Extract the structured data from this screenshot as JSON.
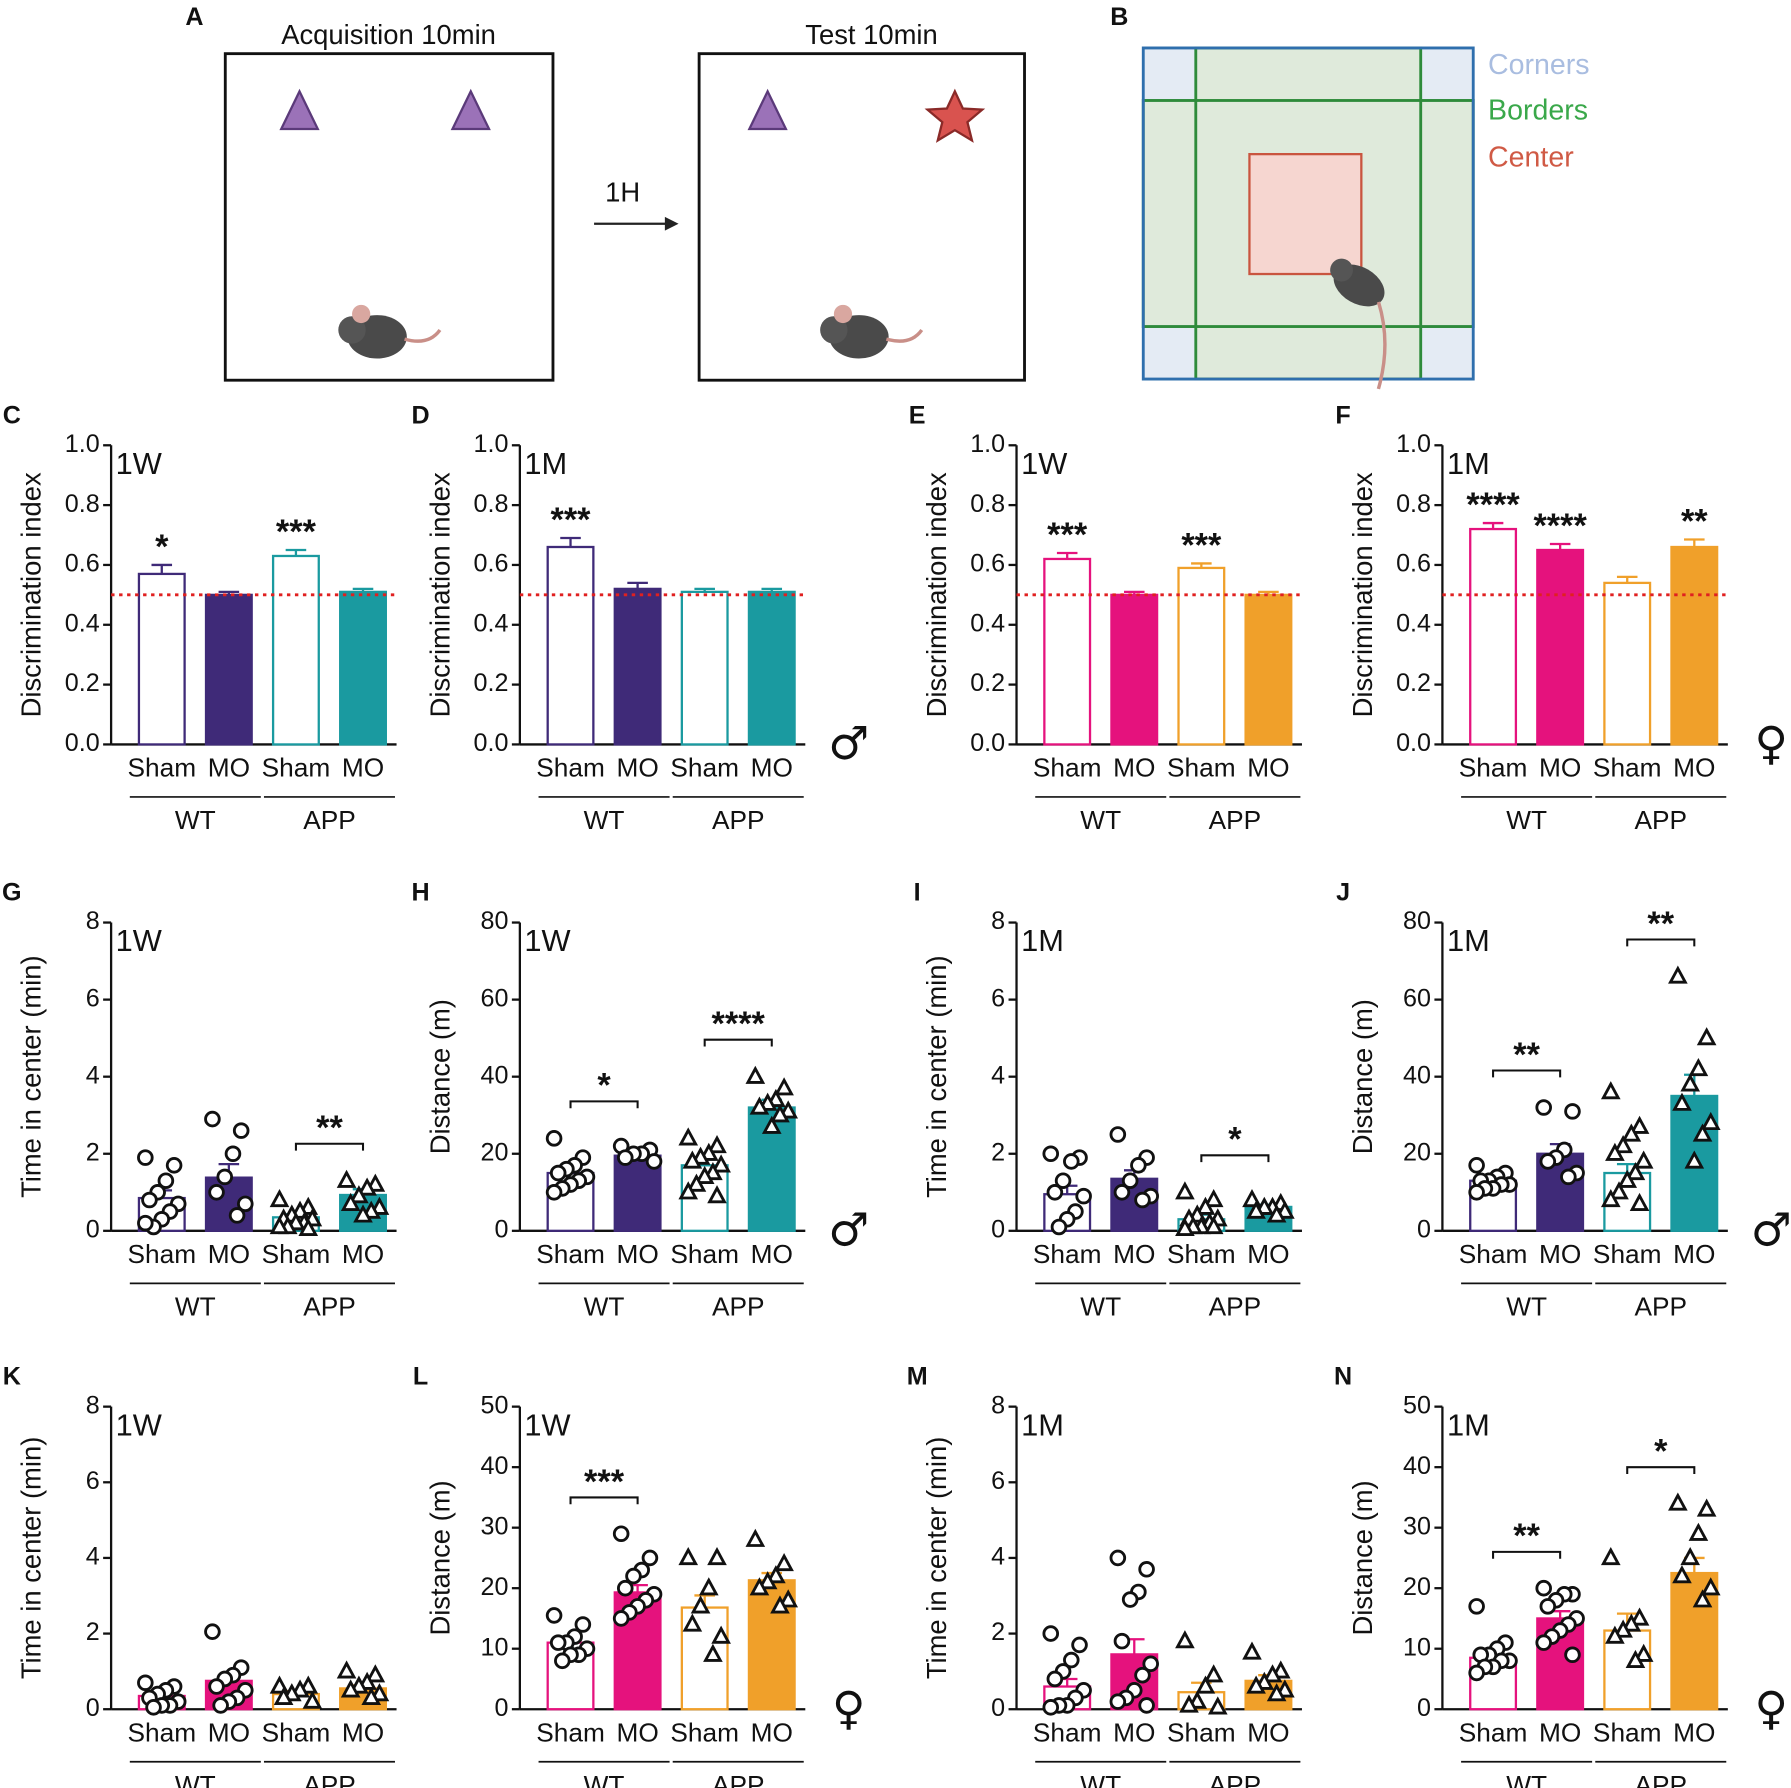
{
  "diagram": {
    "A": {
      "letter": "A",
      "boxes": [
        "Acquisition 10min",
        "Test 10min"
      ],
      "arrow": "1H"
    },
    "B": {
      "letter": "B",
      "zones": [
        "Corners",
        "Borders",
        "Center"
      ]
    }
  },
  "chart_data": [
    {
      "type": "bar",
      "panel": "C",
      "label": "1W",
      "ylabel": "Discrimination index",
      "categories": [
        "Sham",
        "MO",
        "Sham",
        "MO"
      ],
      "groups": [
        "WT",
        "APP"
      ],
      "values": [
        0.57,
        0.5,
        0.63,
        0.51
      ],
      "errors": [
        0.03,
        0.01,
        0.02,
        0.01
      ],
      "colors": [
        "#3f2a78",
        "#3f2a78",
        "#1a9aa0",
        "#1a9aa0"
      ],
      "filled": [
        false,
        true,
        false,
        true
      ],
      "ylim": [
        0,
        1
      ],
      "yticks": [
        {
          "value": 0,
          "label": "0.0"
        },
        0.2,
        0.4,
        0.6,
        0.8,
        {
          "value": 1,
          "label": "1.0"
        }
      ],
      "reference_line": 0.5,
      "significance": [
        {
          "bar": 0,
          "label": "*"
        },
        {
          "bar": 2,
          "label": "***"
        }
      ]
    },
    {
      "type": "bar",
      "panel": "D",
      "label": "1M",
      "ylabel": "Discrimination index",
      "categories": [
        "Sham",
        "MO",
        "Sham",
        "MO"
      ],
      "groups": [
        "WT",
        "APP"
      ],
      "values": [
        0.66,
        0.52,
        0.51,
        0.51
      ],
      "errors": [
        0.03,
        0.02,
        0.01,
        0.01
      ],
      "colors": [
        "#3f2a78",
        "#3f2a78",
        "#1a9aa0",
        "#1a9aa0"
      ],
      "filled": [
        false,
        true,
        false,
        true
      ],
      "ylim": [
        0,
        1
      ],
      "yticks": [
        {
          "value": 0,
          "label": "0.0"
        },
        0.2,
        0.4,
        0.6,
        0.8,
        {
          "value": 1,
          "label": "1.0"
        }
      ],
      "reference_line": 0.5,
      "significance": [
        {
          "bar": 0,
          "label": "***"
        }
      ],
      "sex": "♂"
    },
    {
      "type": "bar",
      "panel": "E",
      "label": "1W",
      "ylabel": "Discrimination index",
      "categories": [
        "Sham",
        "MO",
        "Sham",
        "MO"
      ],
      "groups": [
        "WT",
        "APP"
      ],
      "values": [
        0.62,
        0.5,
        0.59,
        0.5
      ],
      "errors": [
        0.02,
        0.01,
        0.015,
        0.01
      ],
      "colors": [
        "#e5127d",
        "#e5127d",
        "#f0a02a",
        "#f0a02a"
      ],
      "filled": [
        false,
        true,
        false,
        true
      ],
      "ylim": [
        0,
        1
      ],
      "yticks": [
        {
          "value": 0,
          "label": "0.0"
        },
        0.2,
        0.4,
        0.6,
        0.8,
        {
          "value": 1,
          "label": "1.0"
        }
      ],
      "reference_line": 0.5,
      "significance": [
        {
          "bar": 0,
          "label": "***"
        },
        {
          "bar": 2,
          "label": "***"
        }
      ]
    },
    {
      "type": "bar",
      "panel": "F",
      "label": "1M",
      "ylabel": "Discrimination index",
      "categories": [
        "Sham",
        "MO",
        "Sham",
        "MO"
      ],
      "groups": [
        "WT",
        "APP"
      ],
      "values": [
        0.72,
        0.65,
        0.54,
        0.66
      ],
      "errors": [
        0.02,
        0.02,
        0.02,
        0.025
      ],
      "colors": [
        "#e5127d",
        "#e5127d",
        "#f0a02a",
        "#f0a02a"
      ],
      "filled": [
        false,
        true,
        false,
        true
      ],
      "ylim": [
        0,
        1
      ],
      "yticks": [
        {
          "value": 0,
          "label": "0.0"
        },
        0.2,
        0.4,
        0.6,
        0.8,
        {
          "value": 1,
          "label": "1.0"
        }
      ],
      "reference_line": 0.5,
      "significance": [
        {
          "bar": 0,
          "label": "****"
        },
        {
          "bar": 1,
          "label": "****"
        },
        {
          "bar": 3,
          "label": "**"
        }
      ],
      "sex": "♀"
    },
    {
      "type": "bar",
      "panel": "G",
      "label": "1W",
      "ylabel": "Time in center (min)",
      "categories": [
        "Sham",
        "MO",
        "Sham",
        "MO"
      ],
      "groups": [
        "WT",
        "APP"
      ],
      "values": [
        0.85,
        1.38,
        0.35,
        0.93
      ],
      "errors": [
        0.2,
        0.35,
        0.08,
        0.15
      ],
      "colors": [
        "#3f2a78",
        "#3f2a78",
        "#1a9aa0",
        "#1a9aa0"
      ],
      "filled": [
        false,
        true,
        false,
        true
      ],
      "markers": [
        "circle",
        "circle",
        "triangle",
        "triangle"
      ],
      "points": [
        [
          1.9,
          1.7,
          1.3,
          1.0,
          0.8,
          0.7,
          0.5,
          0.3,
          0.1,
          0.2
        ],
        [
          2.9,
          2.6,
          2.0,
          1.4,
          1.0,
          0.7,
          0.4
        ],
        [
          0.8,
          0.6,
          0.5,
          0.4,
          0.3,
          0.3,
          0.2,
          0.2,
          0.1,
          0.1,
          0.05
        ],
        [
          1.3,
          1.2,
          1.1,
          0.9,
          0.7,
          0.6,
          0.5,
          0.4
        ]
      ],
      "ylim": [
        0,
        8
      ],
      "yticks": [
        0,
        2,
        4,
        6,
        8
      ],
      "brackets": [
        {
          "from": 2,
          "to": 3,
          "label": "**"
        }
      ]
    },
    {
      "type": "bar",
      "panel": "H",
      "label": "1W",
      "ylabel": "Distance (m)",
      "categories": [
        "Sham",
        "MO",
        "Sham",
        "MO"
      ],
      "groups": [
        "WT",
        "APP"
      ],
      "values": [
        15,
        19.5,
        17,
        32
      ],
      "errors": [
        1.2,
        1,
        1.5,
        2
      ],
      "colors": [
        "#3f2a78",
        "#3f2a78",
        "#1a9aa0",
        "#1a9aa0"
      ],
      "filled": [
        false,
        true,
        false,
        true
      ],
      "markers": [
        "circle",
        "circle",
        "triangle",
        "triangle"
      ],
      "points": [
        [
          24,
          19,
          17,
          16,
          15,
          14,
          13,
          12,
          11,
          10
        ],
        [
          22,
          21,
          20,
          20,
          19,
          18
        ],
        [
          24,
          22,
          20,
          19,
          18,
          17,
          15,
          14,
          12,
          10,
          9
        ],
        [
          40,
          37,
          34,
          33,
          32,
          31,
          30,
          27
        ]
      ],
      "ylim": [
        0,
        80
      ],
      "yticks": [
        0,
        20,
        40,
        60,
        80
      ],
      "brackets": [
        {
          "from": 0,
          "to": 1,
          "label": "*"
        },
        {
          "from": 2,
          "to": 3,
          "label": "****"
        }
      ],
      "sex": "♂"
    },
    {
      "type": "bar",
      "panel": "I",
      "label": "1M",
      "ylabel": "Time in center (min)",
      "categories": [
        "Sham",
        "MO",
        "Sham",
        "MO"
      ],
      "groups": [
        "WT",
        "APP"
      ],
      "values": [
        0.95,
        1.35,
        0.3,
        0.62
      ],
      "errors": [
        0.22,
        0.22,
        0.12,
        0.06
      ],
      "colors": [
        "#3f2a78",
        "#3f2a78",
        "#1a9aa0",
        "#1a9aa0"
      ],
      "filled": [
        false,
        true,
        false,
        true
      ],
      "markers": [
        "circle",
        "circle",
        "triangle",
        "triangle"
      ],
      "points": [
        [
          2.0,
          1.9,
          1.8,
          1.3,
          1.0,
          0.9,
          0.5,
          0.3,
          0.1
        ],
        [
          2.5,
          1.9,
          1.7,
          1.3,
          1.0,
          0.9,
          0.8
        ],
        [
          1.0,
          0.8,
          0.6,
          0.4,
          0.3,
          0.3,
          0.2,
          0.1,
          0.1,
          0.05,
          0.1
        ],
        [
          0.8,
          0.7,
          0.6,
          0.6,
          0.5,
          0.5,
          0.4
        ]
      ],
      "ylim": [
        0,
        8
      ],
      "yticks": [
        0,
        2,
        4,
        6,
        8
      ],
      "brackets": [
        {
          "from": 2,
          "to": 3,
          "label": "*"
        }
      ]
    },
    {
      "type": "bar",
      "panel": "J",
      "label": "1M",
      "ylabel": "Distance (m)",
      "categories": [
        "Sham",
        "MO",
        "Sham",
        "MO"
      ],
      "groups": [
        "WT",
        "APP"
      ],
      "values": [
        13,
        20,
        15,
        35
      ],
      "errors": [
        0.8,
        2.5,
        2.3,
        5.5
      ],
      "colors": [
        "#3f2a78",
        "#3f2a78",
        "#1a9aa0",
        "#1a9aa0"
      ],
      "filled": [
        false,
        true,
        false,
        true
      ],
      "markers": [
        "circle",
        "circle",
        "triangle",
        "triangle"
      ],
      "points": [
        [
          17,
          15,
          14,
          13,
          13,
          12,
          12,
          11,
          11,
          10
        ],
        [
          32,
          31,
          21,
          19,
          18,
          15,
          14
        ],
        [
          36,
          27,
          25,
          22,
          20,
          18,
          15,
          13,
          10,
          8,
          7
        ],
        [
          66,
          50,
          42,
          38,
          33,
          28,
          25,
          18
        ]
      ],
      "ylim": [
        0,
        80
      ],
      "yticks": [
        0,
        20,
        40,
        60,
        80
      ],
      "brackets": [
        {
          "from": 0,
          "to": 1,
          "label": "**"
        },
        {
          "from": 2,
          "to": 3,
          "label": "**"
        }
      ],
      "sex": "♂"
    },
    {
      "type": "bar",
      "panel": "K",
      "label": "1W",
      "ylabel": "Time in center (min)",
      "categories": [
        "Sham",
        "MO",
        "Sham",
        "MO"
      ],
      "groups": [
        "WT",
        "APP"
      ],
      "values": [
        0.35,
        0.75,
        0.4,
        0.55
      ],
      "errors": [
        0.07,
        0.15,
        0.08,
        0.08
      ],
      "colors": [
        "#e5127d",
        "#e5127d",
        "#f0a02a",
        "#f0a02a"
      ],
      "filled": [
        false,
        true,
        false,
        true
      ],
      "markers": [
        "circle",
        "circle",
        "triangle",
        "triangle"
      ],
      "points": [
        [
          0.7,
          0.6,
          0.5,
          0.4,
          0.3,
          0.2,
          0.1,
          0.1,
          0.05
        ],
        [
          2.05,
          1.1,
          0.9,
          0.8,
          0.6,
          0.5,
          0.3,
          0.2,
          0.1
        ],
        [
          0.6,
          0.6,
          0.5,
          0.4,
          0.3,
          0.2
        ],
        [
          1.0,
          0.9,
          0.7,
          0.6,
          0.5,
          0.4,
          0.3
        ]
      ],
      "ylim": [
        0,
        8
      ],
      "yticks": [
        0,
        2,
        4,
        6,
        8
      ]
    },
    {
      "type": "bar",
      "panel": "L",
      "label": "1W",
      "ylabel": "Distance (m)",
      "categories": [
        "Sham",
        "MO",
        "Sham",
        "MO"
      ],
      "groups": [
        "WT",
        "APP"
      ],
      "values": [
        11,
        19.3,
        16.8,
        21.3
      ],
      "errors": [
        0.7,
        1.2,
        2,
        1.2
      ],
      "colors": [
        "#e5127d",
        "#e5127d",
        "#f0a02a",
        "#f0a02a"
      ],
      "filled": [
        false,
        true,
        false,
        true
      ],
      "markers": [
        "circle",
        "circle",
        "triangle",
        "triangle"
      ],
      "points": [
        [
          15.5,
          14,
          12,
          11,
          11,
          10,
          9,
          9,
          8
        ],
        [
          29,
          25,
          23,
          22,
          20,
          19,
          18,
          17,
          16,
          15
        ],
        [
          25,
          25,
          20,
          17,
          14,
          12,
          9
        ],
        [
          28,
          24,
          22,
          21,
          20,
          18,
          17
        ]
      ],
      "ylim": [
        0,
        50
      ],
      "yticks": [
        0,
        10,
        20,
        30,
        40,
        50
      ],
      "brackets": [
        {
          "from": 0,
          "to": 1,
          "label": "***"
        }
      ],
      "sex": "♀"
    },
    {
      "type": "bar",
      "panel": "M",
      "label": "1M",
      "ylabel": "Time in center (min)",
      "categories": [
        "Sham",
        "MO",
        "Sham",
        "MO"
      ],
      "groups": [
        "WT",
        "APP"
      ],
      "values": [
        0.6,
        1.45,
        0.45,
        0.75
      ],
      "errors": [
        0.2,
        0.4,
        0.25,
        0.15
      ],
      "colors": [
        "#e5127d",
        "#e5127d",
        "#f0a02a",
        "#f0a02a"
      ],
      "filled": [
        false,
        true,
        false,
        true
      ],
      "markers": [
        "circle",
        "circle",
        "triangle",
        "triangle"
      ],
      "points": [
        [
          2.0,
          1.7,
          1.3,
          1.0,
          0.8,
          0.5,
          0.3,
          0.1,
          0.1,
          0.05
        ],
        [
          4.0,
          3.7,
          3.1,
          2.9,
          1.8,
          1.2,
          0.9,
          0.5,
          0.3,
          0.2,
          0.1
        ],
        [
          1.8,
          0.9,
          0.6,
          0.2,
          0.1,
          0.05
        ],
        [
          1.5,
          1.0,
          0.9,
          0.7,
          0.6,
          0.5,
          0.4
        ]
      ],
      "ylim": [
        0,
        8
      ],
      "yticks": [
        0,
        2,
        4,
        6,
        8
      ]
    },
    {
      "type": "bar",
      "panel": "N",
      "label": "1M",
      "ylabel": "Distance (m)",
      "categories": [
        "Sham",
        "MO",
        "Sham",
        "MO"
      ],
      "groups": [
        "WT",
        "APP"
      ],
      "values": [
        8.5,
        15,
        13,
        22.5
      ],
      "errors": [
        0.8,
        1.2,
        2.8,
        2.5
      ],
      "colors": [
        "#e5127d",
        "#e5127d",
        "#f0a02a",
        "#f0a02a"
      ],
      "filled": [
        false,
        true,
        false,
        true
      ],
      "markers": [
        "circle",
        "circle",
        "triangle",
        "triangle"
      ],
      "points": [
        [
          17,
          11,
          10,
          9,
          9,
          8,
          8,
          7,
          7,
          6
        ],
        [
          20,
          19,
          19,
          18,
          17,
          15,
          14,
          13,
          12,
          11,
          9
        ],
        [
          25,
          15,
          14,
          13,
          12,
          9,
          8
        ],
        [
          34,
          33,
          29,
          25,
          22,
          20,
          18
        ]
      ],
      "ylim": [
        0,
        50
      ],
      "yticks": [
        0,
        10,
        20,
        30,
        40,
        50
      ],
      "brackets": [
        {
          "from": 0,
          "to": 1,
          "label": "**"
        },
        {
          "from": 2,
          "to": 3,
          "label": "*"
        }
      ],
      "sex": "♀"
    }
  ]
}
